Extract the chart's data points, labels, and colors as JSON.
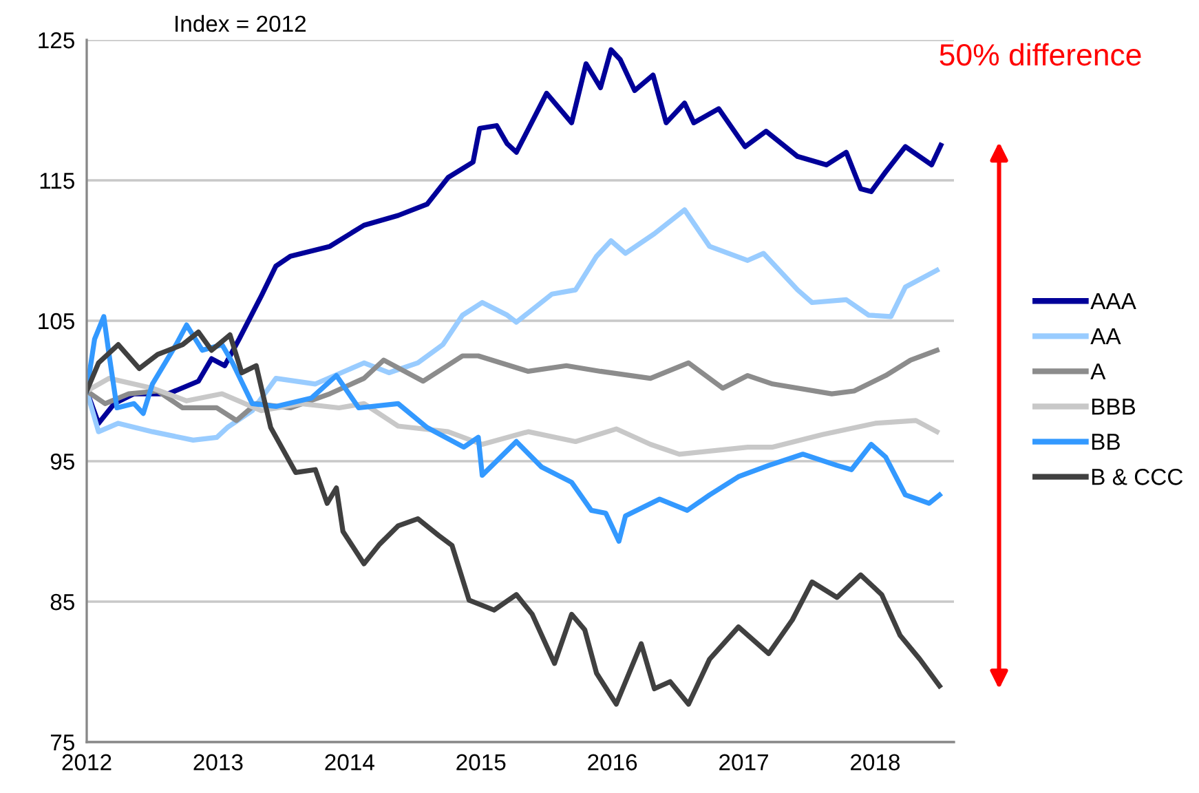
{
  "chart_data": {
    "type": "line",
    "annotations": [
      "Index = 2012",
      "50% difference"
    ],
    "xlim": [
      2012,
      2018.6
    ],
    "xticks": [
      2012,
      2013,
      2014,
      2015,
      2016,
      2017,
      2018
    ],
    "ylim": [
      75,
      125
    ],
    "yticks": [
      75,
      85,
      95,
      105,
      115,
      125
    ],
    "grid": "y",
    "legend": "right",
    "marker": "none",
    "line_style": "solid",
    "series": [
      {
        "name": "AAA",
        "color": "#000099",
        "x": [
          2012.0,
          2012.09,
          2012.21,
          2012.36,
          2012.62,
          2012.85,
          2012.95,
          2013.05,
          2013.16,
          2013.33,
          2013.44,
          2013.55,
          2013.85,
          2014.11,
          2014.37,
          2014.59,
          2014.75,
          2014.94,
          2014.99,
          2015.12,
          2015.2,
          2015.27,
          2015.5,
          2015.69,
          2015.8,
          2015.91,
          2015.99,
          2016.06,
          2016.17,
          2016.31,
          2016.41,
          2016.55,
          2016.62,
          2016.81,
          2017.01,
          2017.17,
          2017.41,
          2017.63,
          2017.78,
          2017.89,
          2017.97,
          2018.08,
          2018.23,
          2018.43,
          2018.5
        ],
        "values": [
          100.0,
          97.7,
          99.1,
          99.8,
          99.8,
          100.7,
          102.3,
          101.8,
          103.7,
          106.8,
          108.9,
          109.6,
          110.3,
          111.8,
          112.5,
          113.3,
          115.2,
          116.3,
          118.7,
          118.9,
          117.6,
          117.0,
          121.2,
          119.1,
          123.3,
          121.6,
          124.3,
          123.6,
          121.4,
          122.5,
          119.1,
          120.5,
          119.1,
          120.1,
          117.4,
          118.5,
          116.7,
          116.1,
          117.0,
          114.4,
          114.2,
          115.6,
          117.4,
          116.1,
          117.5
        ]
      },
      {
        "name": "AA",
        "color": "#99ccff",
        "x": [
          2012.0,
          2012.09,
          2012.24,
          2012.5,
          2012.81,
          2012.99,
          2013.07,
          2013.26,
          2013.44,
          2013.74,
          2014.11,
          2014.3,
          2014.52,
          2014.71,
          2014.86,
          2015.01,
          2015.2,
          2015.27,
          2015.54,
          2015.72,
          2015.88,
          2015.99,
          2016.1,
          2016.32,
          2016.55,
          2016.74,
          2017.03,
          2017.15,
          2017.41,
          2017.52,
          2017.78,
          2017.95,
          2018.12,
          2018.23,
          2018.47
        ],
        "values": [
          100.0,
          97.1,
          97.7,
          97.1,
          96.5,
          96.7,
          97.4,
          98.6,
          100.9,
          100.5,
          102.0,
          101.3,
          102.0,
          103.3,
          105.4,
          106.3,
          105.4,
          104.9,
          106.9,
          107.2,
          109.6,
          110.7,
          109.8,
          111.2,
          112.9,
          110.3,
          109.3,
          109.8,
          107.2,
          106.3,
          106.5,
          105.4,
          105.3,
          107.4,
          108.6
        ]
      },
      {
        "name": "A",
        "color": "#8c8c8c",
        "x": [
          2012.0,
          2012.14,
          2012.32,
          2012.54,
          2012.73,
          2012.99,
          2013.14,
          2013.29,
          2013.55,
          2013.85,
          2014.11,
          2014.26,
          2014.56,
          2014.86,
          2014.98,
          2015.36,
          2015.65,
          2015.91,
          2016.29,
          2016.58,
          2016.84,
          2017.03,
          2017.22,
          2017.67,
          2017.84,
          2018.08,
          2018.27,
          2018.47
        ],
        "values": [
          100.0,
          99.1,
          99.8,
          100.0,
          98.8,
          98.8,
          97.9,
          99.1,
          98.8,
          99.8,
          100.9,
          102.2,
          100.7,
          102.5,
          102.5,
          101.4,
          101.8,
          101.4,
          100.9,
          102.0,
          100.2,
          101.1,
          100.5,
          99.8,
          100.0,
          101.1,
          102.2,
          102.9
        ]
      },
      {
        "name": "BBB",
        "color": "#c8c8c8",
        "x": [
          2012.0,
          2012.17,
          2012.5,
          2012.76,
          2013.03,
          2013.33,
          2013.63,
          2013.92,
          2014.11,
          2014.37,
          2014.75,
          2015.01,
          2015.36,
          2015.72,
          2016.03,
          2016.29,
          2016.51,
          2017.03,
          2017.22,
          2017.6,
          2018.0,
          2018.31,
          2018.47
        ],
        "values": [
          100.0,
          100.9,
          100.2,
          99.3,
          99.8,
          98.6,
          99.1,
          98.8,
          99.1,
          97.5,
          97.1,
          96.2,
          97.1,
          96.4,
          97.3,
          96.2,
          95.5,
          96.0,
          96.0,
          96.9,
          97.7,
          97.9,
          97.1
        ]
      },
      {
        "name": "BB",
        "color": "#3399ff",
        "x": [
          2012.0,
          2012.06,
          2012.13,
          2012.17,
          2012.23,
          2012.36,
          2012.43,
          2012.5,
          2012.68,
          2012.76,
          2012.88,
          2013.03,
          2013.11,
          2013.26,
          2013.44,
          2013.71,
          2013.9,
          2014.07,
          2014.37,
          2014.59,
          2014.87,
          2014.98,
          2015.01,
          2015.27,
          2015.46,
          2015.69,
          2015.84,
          2015.95,
          2016.05,
          2016.1,
          2016.36,
          2016.57,
          2016.74,
          2016.96,
          2017.19,
          2017.45,
          2017.71,
          2017.82,
          2017.97,
          2018.08,
          2018.23,
          2018.41,
          2018.49
        ],
        "values": [
          100.0,
          103.7,
          105.3,
          102.6,
          98.8,
          99.1,
          98.4,
          100.5,
          103.3,
          104.7,
          102.9,
          103.3,
          102.0,
          99.1,
          98.9,
          99.5,
          101.1,
          98.8,
          99.1,
          97.4,
          96.0,
          96.7,
          94.0,
          96.4,
          94.6,
          93.5,
          91.5,
          91.3,
          89.3,
          91.1,
          92.3,
          91.5,
          92.6,
          93.9,
          94.7,
          95.5,
          94.7,
          94.4,
          96.2,
          95.3,
          92.6,
          92.0,
          92.6
        ]
      },
      {
        "name": "B & CCC",
        "color": "#404040",
        "x": [
          2012.0,
          2012.09,
          2012.24,
          2012.4,
          2012.54,
          2012.73,
          2012.85,
          2012.95,
          2013.09,
          2013.18,
          2013.29,
          2013.4,
          2013.59,
          2013.74,
          2013.83,
          2013.9,
          2013.95,
          2014.11,
          2014.23,
          2014.37,
          2014.52,
          2014.68,
          2014.78,
          2014.91,
          2015.1,
          2015.27,
          2015.39,
          2015.56,
          2015.69,
          2015.79,
          2015.88,
          2016.03,
          2016.22,
          2016.32,
          2016.44,
          2016.58,
          2016.74,
          2016.96,
          2017.19,
          2017.37,
          2017.52,
          2017.71,
          2017.89,
          2018.05,
          2018.19,
          2018.34,
          2018.49
        ],
        "values": [
          100.0,
          102.0,
          103.3,
          101.6,
          102.6,
          103.3,
          104.2,
          102.9,
          104.0,
          101.3,
          101.8,
          97.4,
          94.2,
          94.4,
          92.0,
          93.1,
          90.0,
          87.7,
          89.1,
          90.4,
          90.9,
          89.7,
          89.0,
          85.1,
          84.4,
          85.5,
          84.1,
          80.6,
          84.1,
          83.0,
          79.9,
          77.7,
          82.0,
          78.8,
          79.3,
          77.7,
          80.9,
          83.2,
          81.3,
          83.7,
          86.4,
          85.3,
          86.9,
          85.5,
          82.6,
          80.9,
          79.0
        ]
      }
    ]
  }
}
